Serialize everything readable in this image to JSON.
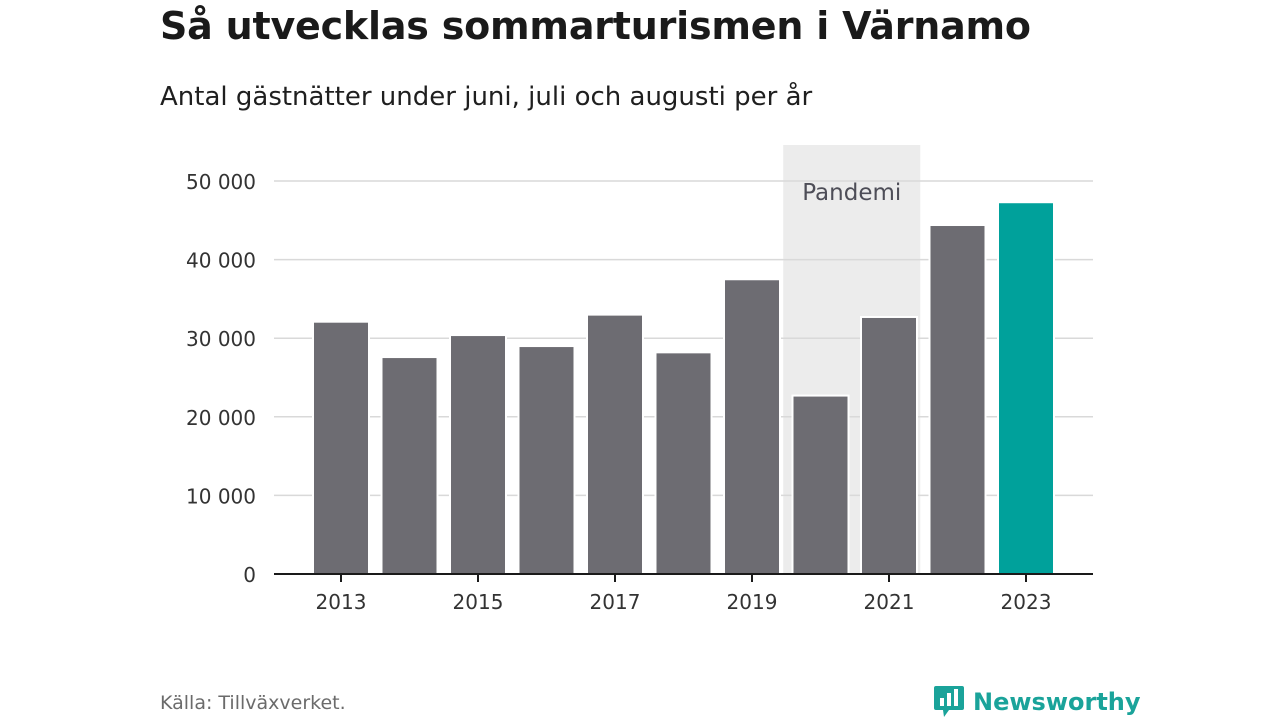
{
  "header": {
    "title": "Så utvecklas sommarturismen i Värnamo",
    "subtitle": "Antal gästnätter under juni, juli och augusti per år"
  },
  "chart_data": {
    "type": "bar",
    "categories": [
      "2013",
      "2014",
      "2015",
      "2016",
      "2017",
      "2018",
      "2019",
      "2020",
      "2021",
      "2022",
      "2023"
    ],
    "values": [
      32100,
      27600,
      30400,
      29000,
      33000,
      28200,
      37500,
      22700,
      32700,
      44400,
      47300
    ],
    "x_tick_labels": [
      "2013",
      "",
      "2015",
      "",
      "2017",
      "",
      "2019",
      "",
      "2021",
      "",
      "2023"
    ],
    "y_ticks": [
      0,
      10000,
      20000,
      30000,
      40000,
      50000
    ],
    "y_tick_labels": [
      "0",
      "10 000",
      "20 000",
      "30 000",
      "40 000",
      "50 000"
    ],
    "ylim": [
      0,
      50000
    ],
    "grid": true,
    "colors": {
      "default": "#6d6c72",
      "highlight": "#00a19b",
      "annotation_band": "#ececec",
      "grid": "#d9d9d9",
      "axis": "#1a1a1a"
    },
    "highlight_category": "2023",
    "annotation": {
      "label": "Pandemi",
      "from": "2020",
      "to": "2021"
    }
  },
  "footer": {
    "source": "Källa: Tillväxverket.",
    "brand": "Newsworthy",
    "brand_icon": "chart-bubble-icon"
  }
}
